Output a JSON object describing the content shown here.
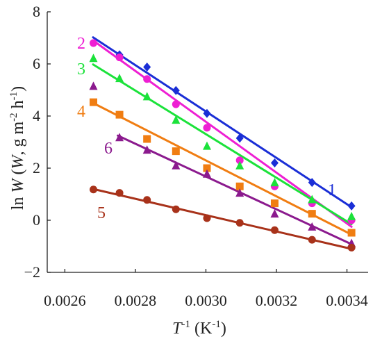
{
  "chart_data": {
    "type": "scatter",
    "title": "",
    "xlabel": {
      "base": "T",
      "base_sup": "-1",
      "unit_open": " (K",
      "unit_sup": "-1",
      "unit_close": ")"
    },
    "ylabel": {
      "prefix": "ln ",
      "var": "W",
      "paren_open": " (",
      "var2": "W",
      "mid": ", g m",
      "sup1": "-2",
      "mid2": " h",
      "sup2": "-1",
      "paren_close": ")"
    },
    "xlim": [
      0.00255,
      0.00346
    ],
    "ylim": [
      -2,
      8
    ],
    "xticks": [
      0.0026,
      0.0028,
      0.003,
      0.0032,
      0.0034
    ],
    "xtick_labels": [
      "0.0026",
      "0.0028",
      "0.0030",
      "0.0032",
      "0.0034"
    ],
    "yticks": [
      -2,
      0,
      2,
      4,
      6,
      8
    ],
    "ytick_labels": [
      "−2",
      "0",
      "2",
      "4",
      "6",
      "8"
    ],
    "grid": false,
    "series": [
      {
        "label": "1",
        "color": "#1a2ed6",
        "marker": "diamond",
        "points": [
          [
            0.002755,
            6.35
          ],
          [
            0.002833,
            5.88
          ],
          [
            0.002915,
            4.98
          ],
          [
            0.003003,
            4.1
          ],
          [
            0.003096,
            3.15
          ],
          [
            0.003195,
            2.2
          ],
          [
            0.003301,
            1.45
          ],
          [
            0.003413,
            0.55
          ]
        ],
        "fit": [
          [
            0.00268,
            7.02
          ],
          [
            0.003413,
            0.5
          ]
        ]
      },
      {
        "label": "2",
        "color": "#ee1fd3",
        "marker": "circle",
        "points": [
          [
            0.002681,
            6.8
          ],
          [
            0.002755,
            6.25
          ],
          [
            0.002833,
            5.42
          ],
          [
            0.002915,
            4.45
          ],
          [
            0.003003,
            3.55
          ],
          [
            0.003096,
            2.3
          ],
          [
            0.003195,
            1.3
          ],
          [
            0.003301,
            0.65
          ],
          [
            0.003413,
            0.0
          ]
        ],
        "fit": [
          [
            0.00268,
            6.9
          ],
          [
            0.003413,
            -0.25
          ]
        ]
      },
      {
        "label": "3",
        "color": "#1be23a",
        "marker": "triangle",
        "points": [
          [
            0.002681,
            6.22
          ],
          [
            0.002755,
            5.45
          ],
          [
            0.002833,
            4.75
          ],
          [
            0.002915,
            3.85
          ],
          [
            0.003003,
            2.85
          ],
          [
            0.003096,
            2.1
          ],
          [
            0.003195,
            1.45
          ],
          [
            0.003301,
            0.8
          ],
          [
            0.003413,
            0.15
          ]
        ],
        "fit": [
          [
            0.00268,
            5.98
          ],
          [
            0.003413,
            -0.15
          ]
        ]
      },
      {
        "label": "4",
        "color": "#f07d12",
        "marker": "square",
        "points": [
          [
            0.002681,
            4.53
          ],
          [
            0.002755,
            4.05
          ],
          [
            0.002833,
            3.12
          ],
          [
            0.002915,
            2.65
          ],
          [
            0.003003,
            2.0
          ],
          [
            0.003096,
            1.3
          ],
          [
            0.003195,
            0.65
          ],
          [
            0.003301,
            0.25
          ],
          [
            0.003413,
            -0.48
          ]
        ],
        "fit": [
          [
            0.00268,
            4.5
          ],
          [
            0.003413,
            -0.55
          ]
        ]
      },
      {
        "label": "6",
        "color": "#8b1a8e",
        "marker": "triangle",
        "points": [
          [
            0.002681,
            5.15
          ],
          [
            0.002755,
            3.18
          ],
          [
            0.002833,
            2.7
          ],
          [
            0.002915,
            2.1
          ],
          [
            0.003003,
            1.78
          ],
          [
            0.003096,
            1.05
          ],
          [
            0.003195,
            0.25
          ],
          [
            0.003301,
            -0.25
          ],
          [
            0.003413,
            -0.88
          ]
        ],
        "fit": [
          [
            0.00275,
            3.25
          ],
          [
            0.003413,
            -0.92
          ]
        ]
      },
      {
        "label": "5",
        "color": "#a8321a",
        "marker": "circle",
        "points": [
          [
            0.002681,
            1.18
          ],
          [
            0.002755,
            1.05
          ],
          [
            0.002833,
            0.78
          ],
          [
            0.002915,
            0.42
          ],
          [
            0.003003,
            0.08
          ],
          [
            0.003096,
            -0.1
          ],
          [
            0.003195,
            -0.38
          ],
          [
            0.003301,
            -0.75
          ],
          [
            0.003413,
            -1.05
          ]
        ],
        "fit": [
          [
            0.00268,
            1.2
          ],
          [
            0.003413,
            -1.1
          ]
        ]
      }
    ]
  }
}
